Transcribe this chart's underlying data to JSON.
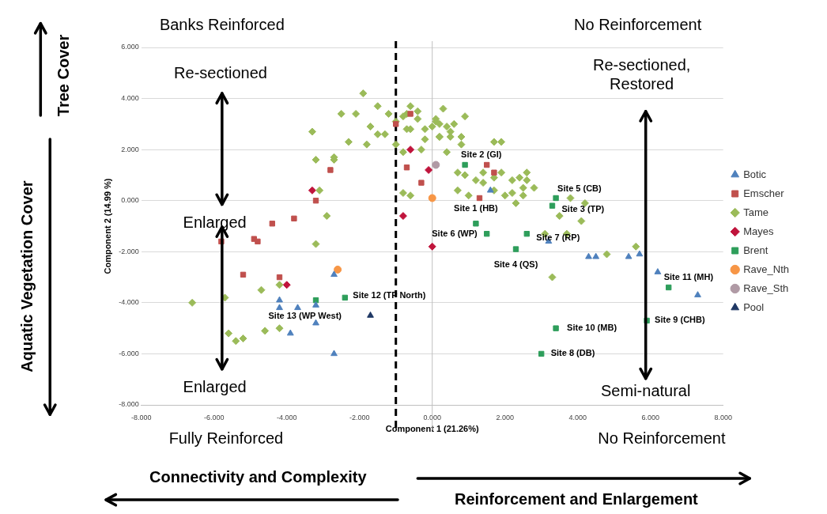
{
  "chart_data": {
    "type": "scatter",
    "xlabel": "Component 1 (21.26%)",
    "ylabel": "Component 2 (14.99 %)",
    "xlim": [
      -8,
      8
    ],
    "ylim": [
      -8,
      6
    ],
    "xticks": [
      {
        "value": -8,
        "label": "-8.000"
      },
      {
        "value": -6,
        "label": "-6.000"
      },
      {
        "value": -4,
        "label": "-4.000"
      },
      {
        "value": -2,
        "label": "-2.000"
      },
      {
        "value": 0,
        "label": "0.000"
      },
      {
        "value": 2,
        "label": "2.000"
      },
      {
        "value": 4,
        "label": "4.000"
      },
      {
        "value": 6,
        "label": "6.000"
      },
      {
        "value": 8,
        "label": "8.000"
      }
    ],
    "yticks": [
      {
        "value": -8,
        "label": "-8.000"
      },
      {
        "value": -6,
        "label": "-6.000"
      },
      {
        "value": -4,
        "label": "-4.000"
      },
      {
        "value": -2,
        "label": "-2.000"
      },
      {
        "value": 0,
        "label": "0.000"
      },
      {
        "value": 2,
        "label": "2.000"
      },
      {
        "value": 4,
        "label": "4.000"
      },
      {
        "value": 6,
        "label": "6.000"
      }
    ],
    "grid": "y",
    "legend": "right",
    "series": [
      {
        "name": "Botic",
        "color": "#4f81bd",
        "marker": "triangle",
        "x": [
          -4.2,
          -4.2,
          -3.7,
          -3.2,
          -3.2,
          -3.9,
          -2.7,
          -2.7,
          1.6,
          3.2,
          4.3,
          4.5,
          5.4,
          5.7,
          6.2,
          7.3
        ],
        "values": [
          -3.9,
          -4.2,
          -4.2,
          -4.1,
          -4.8,
          -5.2,
          -6.0,
          -2.9,
          0.4,
          -1.6,
          -2.2,
          -2.2,
          -2.2,
          -2.1,
          -2.8,
          -3.7
        ]
      },
      {
        "name": "Emscher",
        "color": "#c0504d",
        "marker": "square",
        "x": [
          -2.8,
          -3.2,
          -3.8,
          -4.4,
          -5.8,
          -4.9,
          -4.8,
          -1.0,
          -0.6,
          -0.7,
          -0.3,
          -5.2,
          -4.2,
          1.5,
          1.7,
          1.3
        ],
        "values": [
          1.2,
          0.0,
          -0.7,
          -0.9,
          -1.6,
          -1.5,
          -1.6,
          3.0,
          3.4,
          1.3,
          0.7,
          -2.9,
          -3.0,
          1.4,
          1.1,
          0.1
        ]
      },
      {
        "name": "Tame",
        "color": "#9bbb59",
        "marker": "diamond",
        "x": [
          -1.9,
          -3.3,
          -3.2,
          -3.1,
          -2.9,
          -2.7,
          -2.7,
          -2.3,
          -2.5,
          -2.1,
          -1.8,
          -1.7,
          -1.5,
          -1.5,
          -1.3,
          -1.2,
          -1.0,
          -1.0,
          -0.8,
          -0.8,
          -0.7,
          -0.7,
          -0.6,
          -0.6,
          -0.4,
          -0.4,
          -0.3,
          -0.2,
          -0.2,
          -0.8,
          -0.6,
          0.0,
          0.1,
          0.2,
          -3.2,
          -6.6,
          -5.7,
          -4.7,
          -4.2,
          -5.6,
          -5.4,
          -5.2,
          -4.6,
          -4.2,
          0.3,
          0.9,
          0.1,
          0.2,
          0.4,
          0.6,
          0.5,
          0.2,
          0.5,
          0.8,
          0.8,
          0.4,
          1.7,
          1.9,
          0.7,
          0.9,
          1.4,
          1.2,
          1.4,
          1.7,
          1.9,
          2.2,
          2.4,
          2.6,
          2.6,
          2.5,
          2.8,
          0.7,
          1.0,
          2.0,
          2.2,
          2.5,
          1.7,
          2.3,
          3.8,
          4.2,
          3.5,
          4.1,
          3.7,
          3.1,
          4.8,
          5.6,
          3.3
        ],
        "values": [
          4.2,
          2.7,
          1.6,
          0.4,
          -0.6,
          1.6,
          1.7,
          2.3,
          3.4,
          3.4,
          2.2,
          2.9,
          2.6,
          3.7,
          2.6,
          3.4,
          2.2,
          3.1,
          3.3,
          1.9,
          2.8,
          3.4,
          3.7,
          2.8,
          3.2,
          3.5,
          2.0,
          2.8,
          2.4,
          0.3,
          0.2,
          2.9,
          3.1,
          2.5,
          -1.7,
          -4.0,
          -3.8,
          -3.5,
          -3.3,
          -5.2,
          -5.5,
          -5.4,
          -5.1,
          -5.0,
          3.6,
          3.3,
          3.2,
          3.0,
          2.9,
          3.0,
          2.7,
          2.5,
          2.5,
          2.5,
          2.2,
          1.9,
          2.3,
          2.3,
          1.1,
          1.0,
          1.1,
          0.8,
          0.7,
          0.9,
          1.1,
          0.8,
          0.9,
          1.1,
          0.8,
          0.5,
          0.5,
          0.4,
          0.2,
          0.2,
          0.3,
          0.2,
          0.4,
          -0.1,
          0.1,
          -0.1,
          -0.6,
          -0.8,
          -1.3,
          -1.3,
          -2.1,
          -1.8,
          -3.0
        ]
      },
      {
        "name": "Mayes",
        "color": "#c0143c",
        "marker": "diamond",
        "x": [
          -3.3,
          -0.6,
          -0.1,
          -0.8,
          0.0,
          -4.0
        ],
        "values": [
          0.4,
          2.0,
          1.2,
          -0.6,
          -1.8,
          -3.3
        ]
      },
      {
        "name": "Brent",
        "color": "#2e9e5b",
        "marker": "square",
        "x": [
          0.9,
          3.4,
          3.3,
          1.2,
          1.5,
          2.6,
          2.3,
          6.5,
          5.9,
          3.4,
          3.0,
          -2.4,
          -3.2
        ],
        "values": [
          1.4,
          0.1,
          -0.2,
          -0.9,
          -1.3,
          -1.3,
          -1.9,
          -3.4,
          -4.7,
          -5.0,
          -6.0,
          -3.8,
          -3.9
        ]
      },
      {
        "name": "Rave_Nth",
        "color": "#f79646",
        "marker": "circle",
        "x": [
          0.0,
          -2.6
        ],
        "values": [
          0.1,
          -2.7
        ]
      },
      {
        "name": "Rave_Sth",
        "color": "#b09aa5",
        "marker": "circle",
        "x": [
          0.1
        ],
        "values": [
          1.4
        ]
      },
      {
        "name": "Pool",
        "color": "#1f3864",
        "marker": "triangle",
        "x": [
          -1.7
        ],
        "values": [
          -4.5
        ]
      }
    ],
    "ref_lines": [
      {
        "axis": "x",
        "value": -1,
        "color": "#000000",
        "line_style": "dashed"
      },
      {
        "axis": "x",
        "value": 0,
        "color": "#bfbfbf",
        "line_style": "solid"
      }
    ],
    "annotations": [
      "Banks Reinforced",
      "No Reinforcement",
      "Re-sectioned",
      "Enlarged",
      "Enlarged",
      "Re-sectioned, Restored",
      "Semi-natural",
      "Fully Reinforced",
      "No Reinforcement",
      "Tree Cover",
      "Aquatic Vegetation Cover",
      "Connectivity and Complexity",
      "Reinforcement and Enlargement",
      {
        "text": "Site 2 (GI)",
        "x": 0.9,
        "y": 1.4
      },
      {
        "text": "Site 5 (CB)",
        "x": 3.4,
        "y": 0.1
      },
      {
        "text": "Site 3 (TP)",
        "x": 3.3,
        "y": -0.2
      },
      {
        "text": "Site 1 (HB)",
        "x": 1.2,
        "y": -0.9
      },
      {
        "text": "Site 6 (WP)",
        "x": 1.5,
        "y": -1.3
      },
      {
        "text": "Site 7 (RP)",
        "x": 2.6,
        "y": -1.3
      },
      {
        "text": "Site 4 (QS)",
        "x": 2.3,
        "y": -1.9
      },
      {
        "text": "Site 11 (MH)",
        "x": 6.5,
        "y": -3.4
      },
      {
        "text": "Site 9 (CHB)",
        "x": 5.9,
        "y": -4.7
      },
      {
        "text": "Site 10 (MB)",
        "x": 3.4,
        "y": -5.0
      },
      {
        "text": "Site 8 (DB)",
        "x": 3.0,
        "y": -6.0
      },
      {
        "text": "Site 12 (TP North)",
        "x": -2.4,
        "y": -3.8
      },
      {
        "text": "Site 13 (WP West)",
        "x": -3.2,
        "y": -3.9
      }
    ]
  }
}
